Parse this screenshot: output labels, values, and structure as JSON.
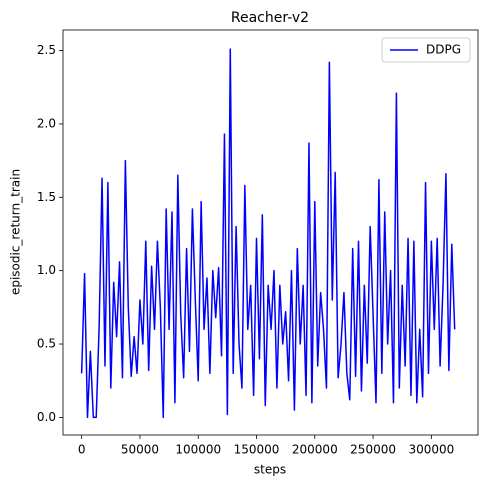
{
  "chart_data": {
    "type": "line",
    "title": "Reacher-v2",
    "x_label": "steps",
    "y_label": "episodic_return_train",
    "x": [
      0,
      2500,
      5000,
      7500,
      10000,
      12500,
      15000,
      17500,
      20000,
      22500,
      25000,
      27500,
      30000,
      32500,
      35000,
      37500,
      40000,
      42500,
      45000,
      47500,
      50000,
      52500,
      55000,
      57500,
      60000,
      62500,
      65000,
      67500,
      70000,
      72500,
      75000,
      77500,
      80000,
      82500,
      85000,
      87500,
      90000,
      92500,
      95000,
      97500,
      100000,
      102500,
      105000,
      107500,
      110000,
      112500,
      115000,
      117500,
      120000,
      122500,
      125000,
      127500,
      130000,
      132500,
      135000,
      137500,
      140000,
      142500,
      145000,
      147500,
      150000,
      152500,
      155000,
      157500,
      160000,
      162500,
      165000,
      167500,
      170000,
      172500,
      175000,
      177500,
      180000,
      182500,
      185000,
      187500,
      190000,
      192500,
      195000,
      197500,
      200000,
      202500,
      205000,
      207500,
      210000,
      212500,
      215000,
      217500,
      220000,
      222500,
      225000,
      227500,
      230000,
      232500,
      235000,
      237500,
      240000,
      242500,
      245000,
      247500,
      250000,
      252500,
      255000,
      257500,
      260000,
      262500,
      265000,
      267500,
      270000,
      272500,
      275000,
      277500,
      280000,
      282500,
      285000,
      287500,
      290000,
      292500,
      295000,
      297500,
      300000,
      302500,
      305000,
      307500,
      310000,
      312500,
      315000,
      317500,
      320000
    ],
    "series": [
      {
        "name": "DDPG",
        "color": "#0000ff",
        "values": [
          0.3,
          0.98,
          0.0,
          0.45,
          0.0,
          0.0,
          0.62,
          1.63,
          0.35,
          1.6,
          0.2,
          0.92,
          0.55,
          1.06,
          0.27,
          1.75,
          0.75,
          0.28,
          0.55,
          0.3,
          0.8,
          0.5,
          1.2,
          0.32,
          1.03,
          0.6,
          1.2,
          0.75,
          0.0,
          1.42,
          0.6,
          1.4,
          0.1,
          1.65,
          0.7,
          0.27,
          1.15,
          0.45,
          1.42,
          0.8,
          0.25,
          1.47,
          0.6,
          0.95,
          0.3,
          1.0,
          0.68,
          1.02,
          0.42,
          1.93,
          0.02,
          2.51,
          0.3,
          1.3,
          0.5,
          0.2,
          1.58,
          0.6,
          0.9,
          0.15,
          1.22,
          0.4,
          1.38,
          0.08,
          0.9,
          0.6,
          1.0,
          0.2,
          0.9,
          0.5,
          0.72,
          0.25,
          1.0,
          0.05,
          1.15,
          0.5,
          0.9,
          0.15,
          1.87,
          0.1,
          1.47,
          0.35,
          0.85,
          0.6,
          0.2,
          2.42,
          0.8,
          1.67,
          0.27,
          0.5,
          0.85,
          0.3,
          0.12,
          1.15,
          0.28,
          1.2,
          0.18,
          0.9,
          0.37,
          1.3,
          0.7,
          0.1,
          1.62,
          0.3,
          1.4,
          0.5,
          1.0,
          0.1,
          2.21,
          0.2,
          0.9,
          0.35,
          1.22,
          0.15,
          1.2,
          0.1,
          0.6,
          0.14,
          1.6,
          0.3,
          1.2,
          0.6,
          1.22,
          0.35,
          0.9,
          1.66,
          0.32,
          1.18,
          0.6
        ]
      }
    ],
    "xlim": [
      -16000,
      340000
    ],
    "xticks": [
      0,
      50000,
      100000,
      150000,
      200000,
      250000,
      300000
    ],
    "ylim": [
      -0.12,
      2.64
    ],
    "yticks": [
      {
        "value": 0,
        "label": "0.0"
      },
      0.5,
      {
        "value": 1,
        "label": "1.0"
      },
      1.5,
      {
        "value": 2,
        "label": "2.0"
      },
      2.5
    ],
    "grid": false,
    "legend": "upper right"
  }
}
